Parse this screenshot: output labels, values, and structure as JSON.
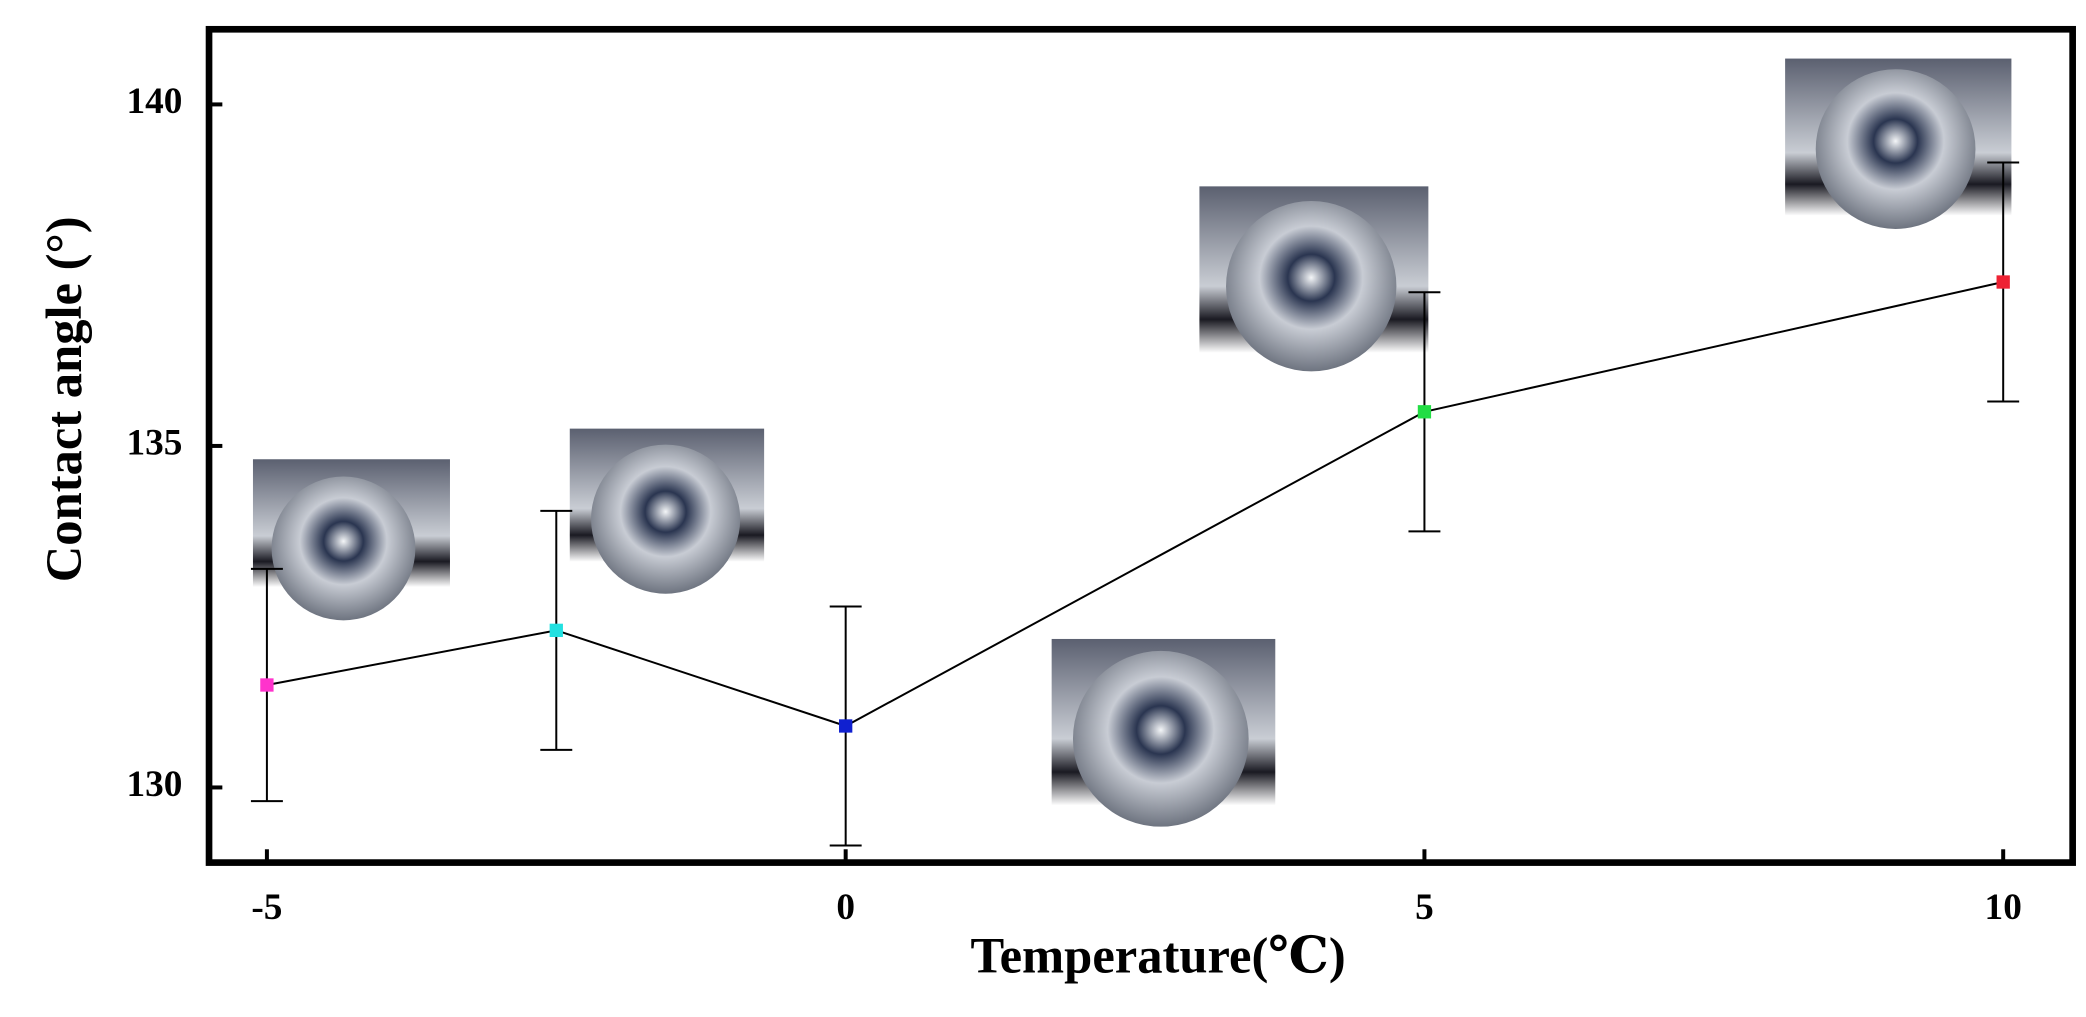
{
  "chart_data": {
    "type": "line",
    "x_label": "Temperature(℃)",
    "y_label": "Contact angle (°)",
    "x": [
      -5,
      -2.5,
      0,
      5,
      10
    ],
    "series": [
      {
        "color": "#000000",
        "values": [
          131.5,
          132.3,
          130.9,
          135.5,
          137.4
        ],
        "errors": [
          1.7,
          1.75,
          1.75,
          1.75,
          1.75
        ],
        "marker_colors": [
          "#ff33cc",
          "#22e0e0",
          "#1020d0",
          "#22dd44",
          "#ee2233"
        ]
      }
    ],
    "xlim": [
      -5.5,
      10.6
    ],
    "xticks": [
      -5,
      0,
      5,
      10
    ],
    "ylim": [
      128.9,
      141.1
    ],
    "yticks": [
      130,
      135,
      140
    ],
    "grid": false
  }
}
